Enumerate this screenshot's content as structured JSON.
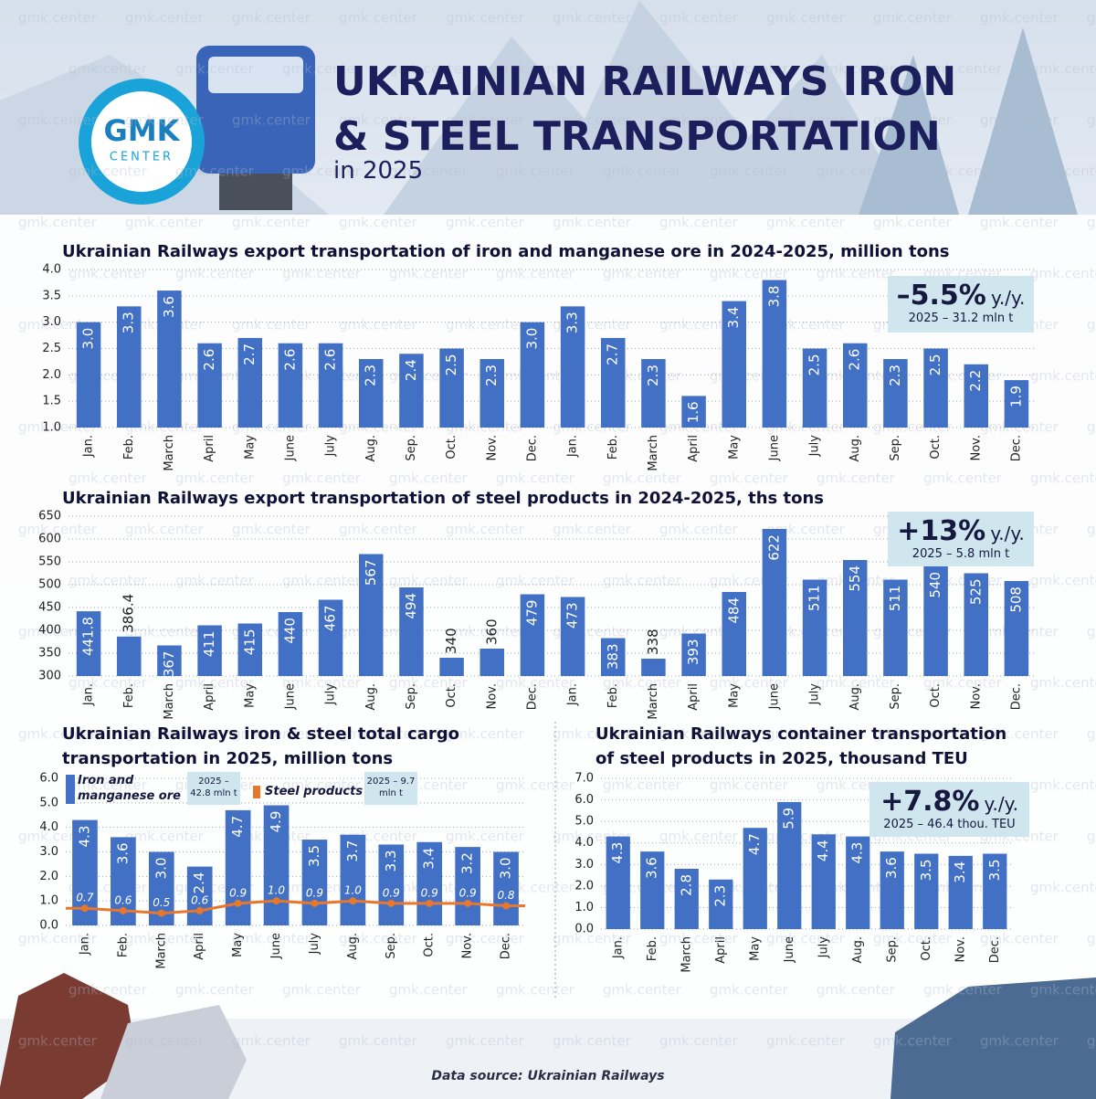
{
  "header": {
    "logo_top": "GMK",
    "logo_bottom": "CENTER",
    "title": "UKRAINIAN RAILWAYS IRON & STEEL TRANSPORTATION",
    "subtitle": "in 2025"
  },
  "watermark": "gmk.center",
  "chart_data": [
    {
      "type": "bar",
      "title": "Ukrainian Railways export transportation of iron and manganese ore in 2024-2025, million tons",
      "categories": [
        "Jan.",
        "Feb.",
        "March",
        "April",
        "May",
        "June",
        "July",
        "Aug.",
        "Sep.",
        "Oct.",
        "Nov.",
        "Dec.",
        "Jan.",
        "Feb.",
        "March",
        "April",
        "May",
        "June",
        "July",
        "Aug.",
        "Sep.",
        "Oct.",
        "Nov.",
        "Dec."
      ],
      "values": [
        3.0,
        3.3,
        3.6,
        2.6,
        2.7,
        2.6,
        2.6,
        2.3,
        2.4,
        2.5,
        2.3,
        3.0,
        3.3,
        2.7,
        2.3,
        1.6,
        3.4,
        3.8,
        2.5,
        2.6,
        2.3,
        2.5,
        2.2,
        1.9
      ],
      "value_labels": [
        "3.0",
        "3.3",
        "3.6",
        "2.6",
        "2.7",
        "2.6",
        "2.6",
        "2.3",
        "2.4",
        "2.5",
        "2.3",
        "3.0",
        "3.3",
        "2.7",
        "2.3",
        "1.6",
        "3.4",
        "3.8",
        "2.5",
        "2.6",
        "2.3",
        "2.5",
        "2.2",
        "1.9"
      ],
      "color": "#4170c4",
      "ylim": [
        1,
        4
      ],
      "yticks": [
        {
          "value": 1,
          "label": "1.0"
        },
        1.5,
        {
          "value": 2,
          "label": "2.0"
        },
        2.5,
        {
          "value": 3,
          "label": "3.0"
        },
        3.5,
        {
          "value": 4,
          "label": "4.0"
        }
      ],
      "grid": true,
      "callout": {
        "change": "–5.5%",
        "unit": "y./y.",
        "note": "2025 – 31.2 mln t"
      }
    },
    {
      "type": "bar",
      "title": "Ukrainian Railways export transportation of steel products in 2024-2025, ths tons",
      "categories": [
        "Jan.",
        "Feb.",
        "March",
        "April",
        "May",
        "June",
        "July",
        "Aug.",
        "Sep.",
        "Oct.",
        "Nov.",
        "Dec.",
        "Jan.",
        "Feb.",
        "March",
        "April",
        "May",
        "June",
        "July",
        "Aug.",
        "Sep.",
        "Oct.",
        "Nov.",
        "Dec."
      ],
      "values": [
        441.8,
        386.4,
        367,
        411,
        415,
        440,
        467,
        567,
        494,
        340,
        360,
        479,
        473,
        383,
        338,
        393,
        484,
        622,
        511,
        554,
        511,
        540,
        525,
        508
      ],
      "color": "#4170c4",
      "ylim": [
        300,
        650
      ],
      "yticks": [
        300,
        350,
        400,
        450,
        500,
        550,
        600,
        650
      ],
      "grid": true,
      "callout": {
        "change": "+13%",
        "unit": "y./y.",
        "note": "2025 – 5.8 mln t"
      }
    },
    {
      "type": "bar",
      "title": "Ukrainian Railways iron & steel total cargo transportation in 2025, million tons",
      "categories": [
        "Jan.",
        "Feb.",
        "March",
        "April",
        "May",
        "June",
        "July",
        "Aug.",
        "Sep.",
        "Oct.",
        "Nov.",
        "Dec."
      ],
      "series": [
        {
          "name": "Iron and manganese ore",
          "color": "#4170c4",
          "note": "2025 – 42.8 mln t",
          "values": [
            4.3,
            3.6,
            3.0,
            2.4,
            4.7,
            4.9,
            3.5,
            3.7,
            3.3,
            3.4,
            3.2,
            3.0
          ],
          "value_labels": [
            "4.3",
            "3.6",
            "3.0",
            "2.4",
            "4.7",
            "4.9",
            "3.5",
            "3.7",
            "3.3",
            "3.4",
            "3.2",
            "3.0"
          ]
        },
        {
          "name": "Steel products",
          "type": "line",
          "color": "#e8772e",
          "note": "2025 – 9.7 mln t",
          "values": [
            0.7,
            0.6,
            0.5,
            0.6,
            0.9,
            1.0,
            0.9,
            1.0,
            0.9,
            0.9,
            0.9,
            0.8
          ],
          "value_labels": [
            "0.7",
            "0.6",
            "0.5",
            "0.6",
            "0.9",
            "1.0",
            "0.9",
            "1.0",
            "0.9",
            "0.9",
            "0.9",
            "0.8"
          ]
        }
      ],
      "ylim": [
        0,
        6
      ],
      "yticks": [
        {
          "value": 0,
          "label": "0.0"
        },
        {
          "value": 1,
          "label": "1.0"
        },
        {
          "value": 2,
          "label": "2.0"
        },
        {
          "value": 3,
          "label": "3.0"
        },
        {
          "value": 4,
          "label": "4.0"
        },
        {
          "value": 5,
          "label": "5.0"
        },
        {
          "value": 6,
          "label": "6.0"
        }
      ],
      "grid": true
    },
    {
      "type": "bar",
      "title": "Ukrainian Railways container transportation of steel products in 2025, thousand TEU",
      "categories": [
        "Jan.",
        "Feb.",
        "March",
        "April",
        "May",
        "June",
        "July",
        "Aug.",
        "Sep.",
        "Oct.",
        "Nov.",
        "Dec."
      ],
      "values": [
        4.3,
        3.6,
        2.8,
        2.3,
        4.7,
        5.9,
        4.4,
        4.3,
        3.6,
        3.5,
        3.4,
        3.5
      ],
      "color": "#4170c4",
      "ylim": [
        0,
        7
      ],
      "yticks": [
        {
          "value": 0,
          "label": "0.0"
        },
        {
          "value": 1,
          "label": "1.0"
        },
        {
          "value": 2,
          "label": "2.0"
        },
        {
          "value": 3,
          "label": "3.0"
        },
        {
          "value": 4,
          "label": "4.0"
        },
        {
          "value": 5,
          "label": "5.0"
        },
        {
          "value": 6,
          "label": "6.0"
        },
        {
          "value": 7,
          "label": "7.0"
        }
      ],
      "grid": true,
      "callout": {
        "change": "+7.8%",
        "unit": "y./y.",
        "note": "2025 – 46.4 thou. TEU"
      }
    }
  ],
  "source": "Data source: Ukrainian Railways"
}
